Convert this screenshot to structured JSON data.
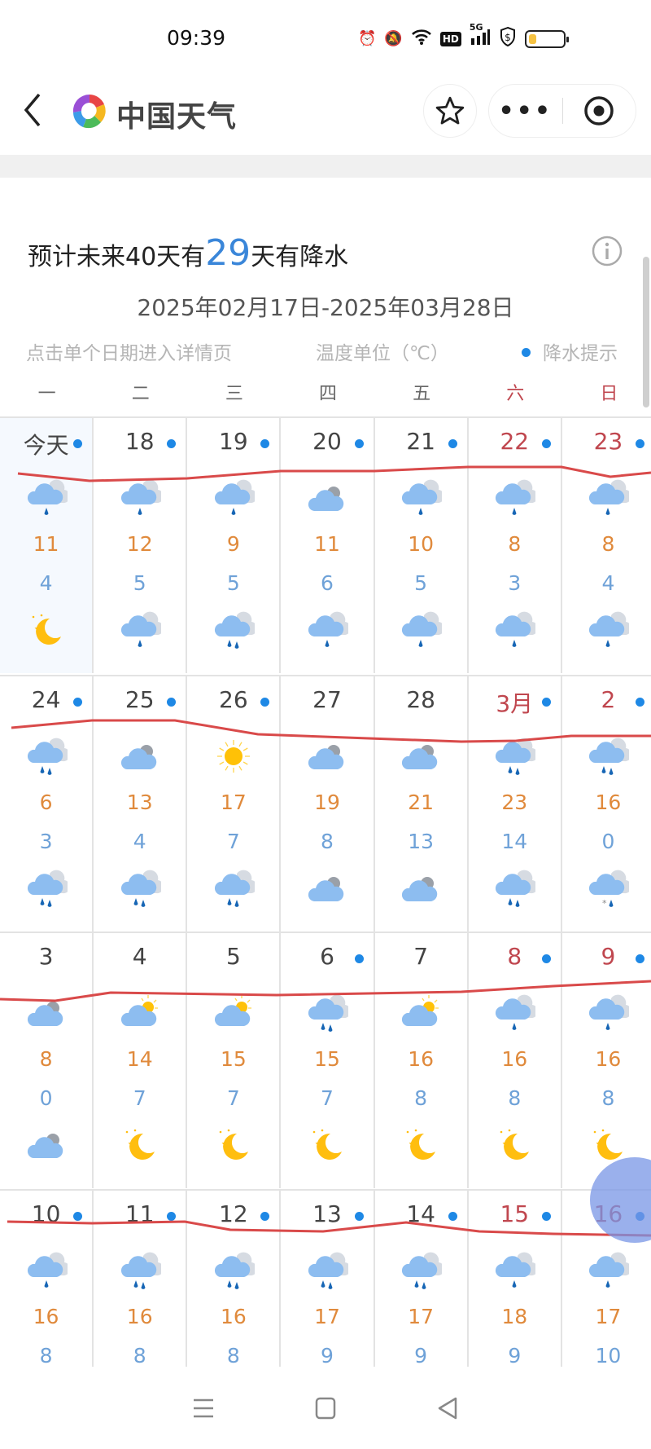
{
  "status_bar": {
    "time": "09:39",
    "icons": [
      "alarm-icon",
      "mute-icon",
      "wifi-icon",
      "hd-icon",
      "5g-signal-icon",
      "shield-dollar-icon",
      "battery-icon"
    ],
    "network_label": "5G",
    "hd_label": "HD",
    "battery_level": 0.2
  },
  "nav": {
    "title": "中国天气",
    "more_label": "•••"
  },
  "summary": {
    "prefix": "预计未来40天有",
    "count": "29",
    "suffix": "天有降水",
    "date_range": "2025年02月17日-2025年03月28日"
  },
  "hints": {
    "tap_hint": "点击单个日期进入详情页",
    "unit_hint": "温度单位（℃）",
    "rain_hint": "降水提示"
  },
  "weekdays": [
    "一",
    "二",
    "三",
    "四",
    "五",
    "六",
    "日"
  ],
  "colors": {
    "high": "#e08a3c",
    "low": "#6fa2d8",
    "weekend": "#c0474f",
    "rain_dot": "#1e88e5",
    "annotation": "#d94a4a"
  },
  "rows": [
    {
      "days": [
        {
          "date": "今天",
          "rain": true,
          "day_icon": "light-rain",
          "high": "11",
          "low": "4",
          "night_icon": "clear-night"
        },
        {
          "date": "18",
          "rain": true,
          "day_icon": "light-rain",
          "high": "12",
          "low": "5",
          "night_icon": "light-rain"
        },
        {
          "date": "19",
          "rain": true,
          "day_icon": "light-rain",
          "high": "9",
          "low": "5",
          "night_icon": "moderate-rain"
        },
        {
          "date": "20",
          "rain": true,
          "day_icon": "overcast",
          "high": "11",
          "low": "6",
          "night_icon": "light-rain"
        },
        {
          "date": "21",
          "rain": true,
          "day_icon": "light-rain",
          "high": "10",
          "low": "5",
          "night_icon": "light-rain"
        },
        {
          "date": "22",
          "rain": true,
          "day_icon": "light-rain",
          "high": "8",
          "low": "3",
          "night_icon": "light-rain"
        },
        {
          "date": "23",
          "rain": true,
          "day_icon": "light-rain",
          "high": "8",
          "low": "4",
          "night_icon": "light-rain"
        }
      ]
    },
    {
      "days": [
        {
          "date": "24",
          "rain": true,
          "day_icon": "moderate-rain",
          "high": "6",
          "low": "3",
          "night_icon": "moderate-rain"
        },
        {
          "date": "25",
          "rain": true,
          "day_icon": "overcast",
          "high": "13",
          "low": "4",
          "night_icon": "moderate-rain"
        },
        {
          "date": "26",
          "rain": true,
          "day_icon": "sunny",
          "high": "17",
          "low": "7",
          "night_icon": "moderate-rain"
        },
        {
          "date": "27",
          "rain": false,
          "day_icon": "overcast",
          "high": "19",
          "low": "8",
          "night_icon": "overcast"
        },
        {
          "date": "28",
          "rain": false,
          "day_icon": "overcast",
          "high": "21",
          "low": "13",
          "night_icon": "overcast"
        },
        {
          "date": "3月",
          "rain": true,
          "day_icon": "moderate-rain",
          "high": "23",
          "low": "14",
          "night_icon": "moderate-rain"
        },
        {
          "date": "2",
          "rain": true,
          "day_icon": "moderate-rain",
          "high": "16",
          "low": "0",
          "night_icon": "sleet"
        }
      ]
    },
    {
      "days": [
        {
          "date": "3",
          "rain": false,
          "day_icon": "overcast",
          "high": "8",
          "low": "0",
          "night_icon": "overcast"
        },
        {
          "date": "4",
          "rain": false,
          "day_icon": "partly-cloudy",
          "high": "14",
          "low": "7",
          "night_icon": "clear-night"
        },
        {
          "date": "5",
          "rain": false,
          "day_icon": "partly-cloudy",
          "high": "15",
          "low": "7",
          "night_icon": "clear-night"
        },
        {
          "date": "6",
          "rain": true,
          "day_icon": "moderate-rain",
          "high": "15",
          "low": "7",
          "night_icon": "clear-night"
        },
        {
          "date": "7",
          "rain": false,
          "day_icon": "partly-cloudy",
          "high": "16",
          "low": "8",
          "night_icon": "clear-night"
        },
        {
          "date": "8",
          "rain": true,
          "day_icon": "light-rain",
          "high": "16",
          "low": "8",
          "night_icon": "clear-night"
        },
        {
          "date": "9",
          "rain": true,
          "day_icon": "light-rain",
          "high": "16",
          "low": "8",
          "night_icon": "clear-night"
        }
      ]
    },
    {
      "days": [
        {
          "date": "10",
          "rain": true,
          "day_icon": "light-rain",
          "high": "16",
          "low": "8"
        },
        {
          "date": "11",
          "rain": true,
          "day_icon": "moderate-rain",
          "high": "16",
          "low": "8"
        },
        {
          "date": "12",
          "rain": true,
          "day_icon": "moderate-rain",
          "high": "16",
          "low": "8"
        },
        {
          "date": "13",
          "rain": true,
          "day_icon": "moderate-rain",
          "high": "17",
          "low": "9"
        },
        {
          "date": "14",
          "rain": true,
          "day_icon": "moderate-rain",
          "high": "17",
          "low": "9"
        },
        {
          "date": "15",
          "rain": true,
          "day_icon": "light-rain",
          "high": "18",
          "low": "9"
        },
        {
          "date": "16",
          "rain": true,
          "day_icon": "light-rain",
          "high": "17",
          "low": "10"
        }
      ]
    }
  ]
}
